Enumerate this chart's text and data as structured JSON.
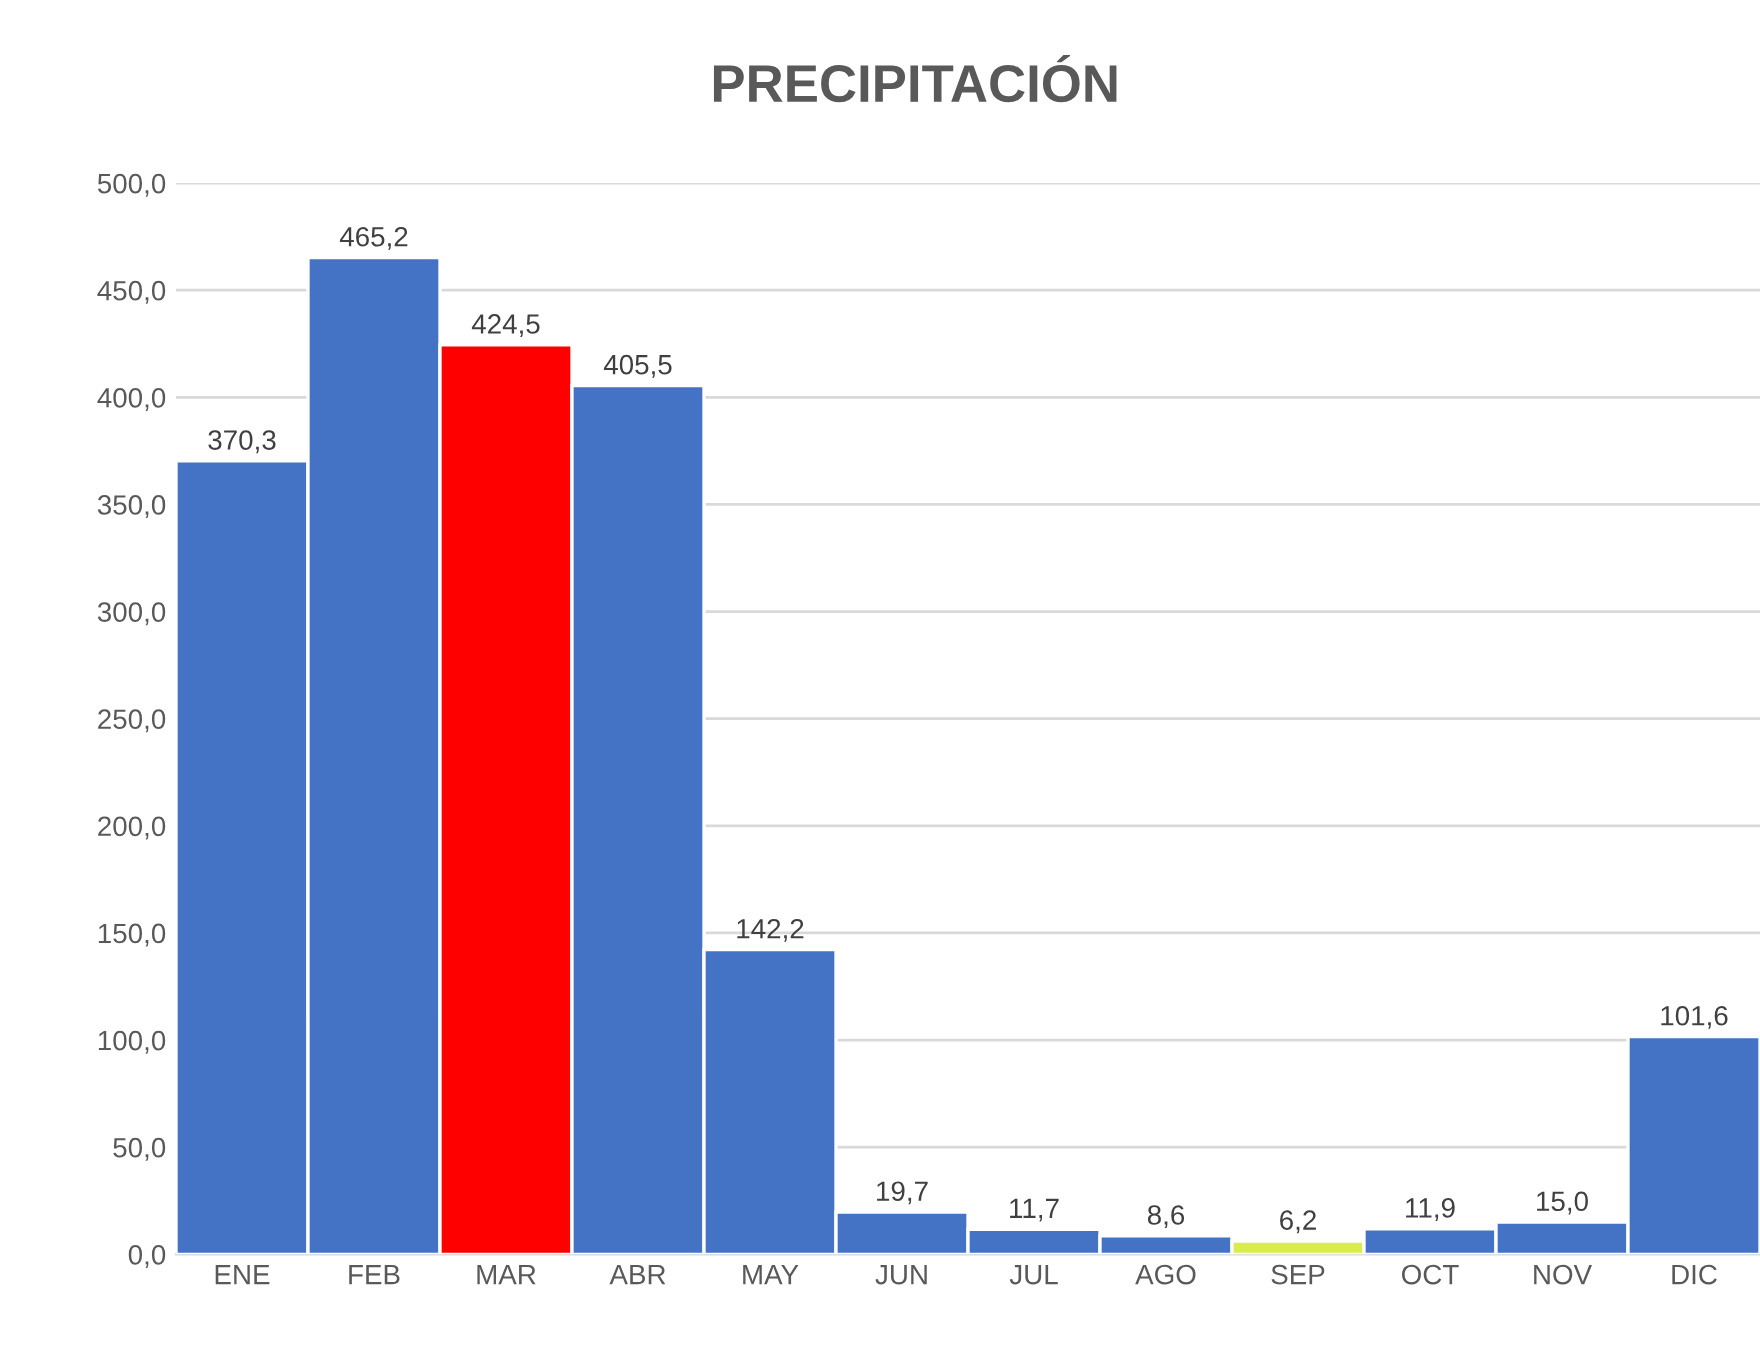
{
  "chart_data": {
    "type": "bar",
    "title": "PRECIPITACIÓN",
    "categories": [
      "ENE",
      "FEB",
      "MAR",
      "ABR",
      "MAY",
      "JUN",
      "JUL",
      "AGO",
      "SEP",
      "OCT",
      "NOV",
      "DIC"
    ],
    "values": [
      370.3,
      465.2,
      424.5,
      405.5,
      142.2,
      19.7,
      11.7,
      8.6,
      6.2,
      11.9,
      15.0,
      101.6
    ],
    "value_labels": [
      "370,3",
      "465,2",
      "424,5",
      "405,5",
      "142,2",
      "19,7",
      "11,7",
      "8,6",
      "6,2",
      "11,9",
      "15,0",
      "101,6"
    ],
    "colors": [
      "#4472c4",
      "#4472c4",
      "#ff0000",
      "#4472c4",
      "#4472c4",
      "#4472c4",
      "#4472c4",
      "#4472c4",
      "#d9ec4c",
      "#4472c4",
      "#4472c4",
      "#4472c4"
    ],
    "ylim": [
      0,
      500
    ],
    "yticks": [
      {
        "value": 0,
        "label": "0,0"
      },
      {
        "value": 50,
        "label": "50,0"
      },
      {
        "value": 100,
        "label": "100,0"
      },
      {
        "value": 150,
        "label": "150,0"
      },
      {
        "value": 200,
        "label": "200,0"
      },
      {
        "value": 250,
        "label": "250,0"
      },
      {
        "value": 300,
        "label": "300,0"
      },
      {
        "value": 350,
        "label": "350,0"
      },
      {
        "value": 400,
        "label": "400,0"
      },
      {
        "value": 450,
        "label": "450,0"
      },
      {
        "value": 500,
        "label": "500,0"
      }
    ],
    "grid": "y"
  }
}
